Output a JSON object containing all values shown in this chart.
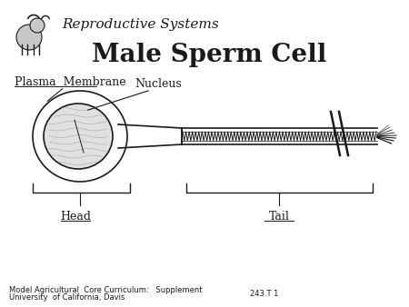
{
  "title": "Male Sperm Cell",
  "header_text": "Reproductive Systems",
  "footer_line1": "Model Agricultural  Core Curriculum:   Supplement",
  "footer_line2": "University  of California, Davis",
  "footer_right": "243.T 1",
  "labels": {
    "plasma_membrane": "Plasma  Membrane",
    "nucleus": "Nucleus",
    "tail": "Tail",
    "head": "Head"
  },
  "bg_color": "#ffffff",
  "fg_color": "#1a1a1a",
  "title_fontsize": 20,
  "header_fontsize": 11,
  "label_fontsize": 9,
  "footer_fontsize": 6
}
